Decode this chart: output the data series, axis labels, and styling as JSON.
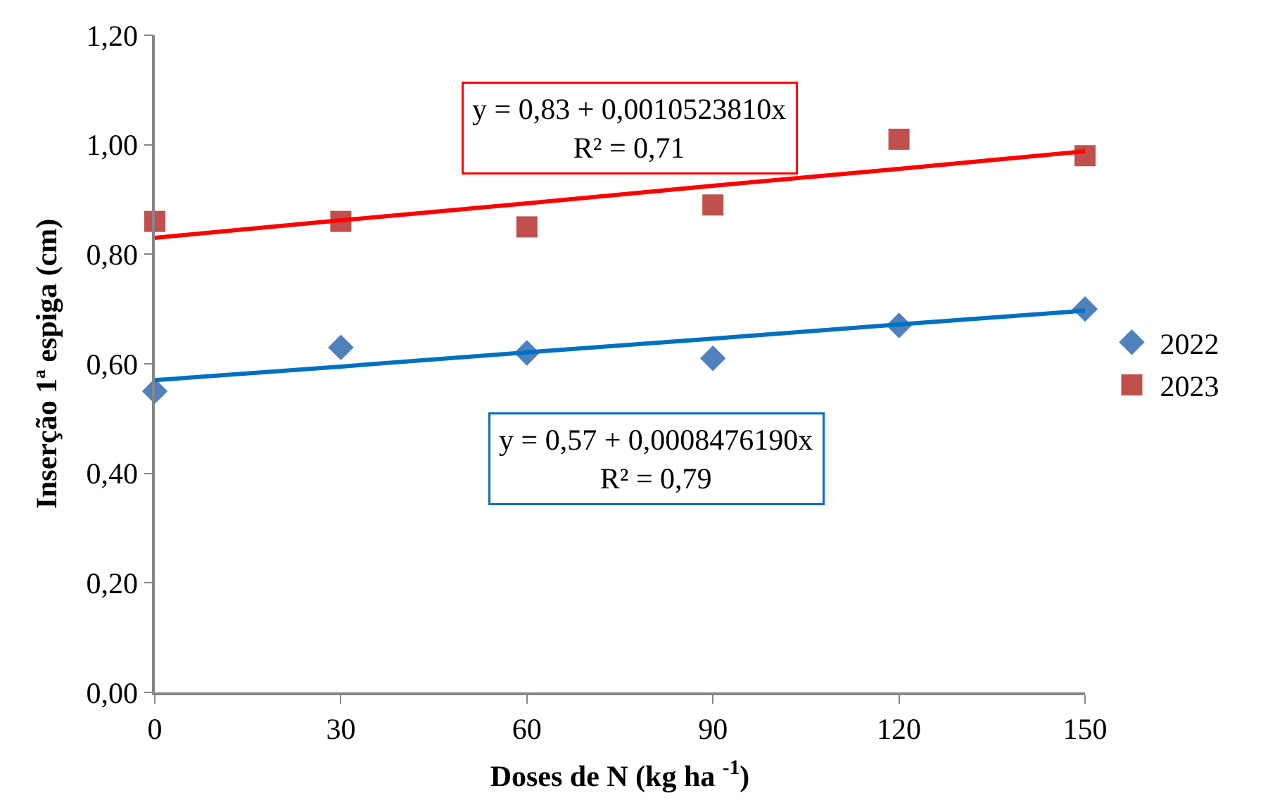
{
  "chart_data": {
    "type": "scatter",
    "xlabel": "Doses de N (kg ha $^{-1}$)",
    "ylabel": "Inserção 1ª espiga (cm)",
    "x": [
      0,
      30,
      60,
      90,
      120,
      150
    ],
    "series": [
      {
        "name": "2022",
        "color": "#4f81bd",
        "marker": "diamond",
        "values": [
          0.55,
          0.63,
          0.62,
          0.61,
          0.67,
          0.7
        ]
      },
      {
        "name": "2023",
        "color": "#c0504d",
        "marker": "square",
        "values": [
          0.86,
          0.86,
          0.85,
          0.89,
          1.01,
          0.98
        ]
      },
      {
        "type": "line",
        "color": "#ff0000",
        "x": [
          0,
          30,
          60,
          90,
          120,
          150
        ],
        "values": [
          0.83,
          0.862,
          0.893,
          0.925,
          0.956,
          0.988
        ]
      },
      {
        "type": "line",
        "color": "#0070c0",
        "x": [
          0,
          30,
          60,
          90,
          120,
          150
        ],
        "values": [
          0.57,
          0.595,
          0.621,
          0.646,
          0.672,
          0.697
        ]
      }
    ],
    "xlim": [
      0,
      150
    ],
    "xticks": [
      0,
      30,
      60,
      90,
      120,
      150
    ],
    "ylim": [
      0,
      1.2
    ],
    "yticks": [
      {
        "value": 0,
        "label": "0,00"
      },
      {
        "value": 0.2,
        "label": "0,20"
      },
      {
        "value": 0.4,
        "label": "0,40"
      },
      {
        "value": 0.6,
        "label": "0,60"
      },
      {
        "value": 0.8,
        "label": "0,80"
      },
      {
        "value": 1.0,
        "label": "1,00"
      },
      {
        "value": 1.2,
        "label": "1,20"
      }
    ],
    "annotations": [
      "y = 0,83 + 0,0010523810x\nR² = 0,71",
      "y = 0,57 + 0,0008476190x\nR² = 0,79"
    ],
    "legend": "right"
  }
}
